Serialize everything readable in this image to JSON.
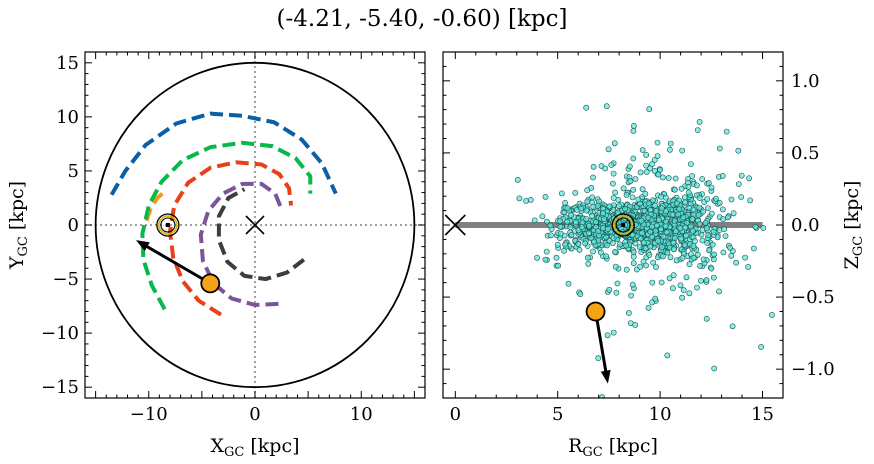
{
  "figure": {
    "title": "(-4.21, -5.40, -0.60) [kpc]"
  },
  "chart_data": [
    {
      "type": "line",
      "panel": "left",
      "title": "",
      "xlabel": "X",
      "xlabel_sub": "GC",
      "xlabel_unit": " [kpc]",
      "ylabel": "Y",
      "ylabel_sub": "GC",
      "ylabel_unit": " [kpc]",
      "xlim": [
        -16,
        16
      ],
      "ylim": [
        -16,
        16
      ],
      "xticks": [
        -10,
        0,
        10
      ],
      "yticks": [
        -15,
        -10,
        -5,
        0,
        5,
        10,
        15
      ],
      "tick_labels_x": [
        "−10",
        "0",
        "10"
      ],
      "tick_labels_y": [
        "−15",
        "−10",
        "−5",
        "0",
        "5",
        "10",
        "15"
      ],
      "outer_circle_radius": 15,
      "galactic_center": [
        0,
        0
      ],
      "sun": [
        -8.2,
        0
      ],
      "object": [
        -4.21,
        -5.4
      ],
      "object_velocity_arrow_tip": [
        -11.2,
        -1.4
      ],
      "spiral_arms": [
        {
          "color": "#0a5fa8",
          "points": [
            [
              -13.5,
              2.8
            ],
            [
              -12.2,
              5.0
            ],
            [
              -10.3,
              7.4
            ],
            [
              -7.4,
              9.4
            ],
            [
              -4.2,
              10.3
            ],
            [
              -1.2,
              10.1
            ],
            [
              1.8,
              9.5
            ],
            [
              4.4,
              7.9
            ],
            [
              6.3,
              5.7
            ],
            [
              7.6,
              2.9
            ]
          ]
        },
        {
          "color": "#f29a18",
          "points": [
            [
              -10.2,
              0.4
            ],
            [
              -9.8,
              1.6
            ],
            [
              -9.2,
              2.5
            ],
            [
              -8.6,
              3.0
            ]
          ]
        },
        {
          "color": "#08b84a",
          "points": [
            [
              -8.5,
              -7.8
            ],
            [
              -9.7,
              -5.6
            ],
            [
              -10.5,
              -3.2
            ],
            [
              -10.6,
              -0.8
            ],
            [
              -10.0,
              1.8
            ],
            [
              -8.8,
              4.0
            ],
            [
              -6.8,
              6.0
            ],
            [
              -4.2,
              7.2
            ],
            [
              -1.2,
              7.6
            ],
            [
              1.6,
              7.3
            ],
            [
              3.8,
              6.2
            ],
            [
              5.2,
              4.5
            ],
            [
              5.2,
              2.9
            ]
          ]
        },
        {
          "color": "#e8401a",
          "points": [
            [
              -3.2,
              -8.3
            ],
            [
              -5.3,
              -7.0
            ],
            [
              -6.8,
              -5.2
            ],
            [
              -7.7,
              -3.0
            ],
            [
              -8.0,
              -0.6
            ],
            [
              -7.6,
              1.8
            ],
            [
              -6.3,
              3.9
            ],
            [
              -4.2,
              5.3
            ],
            [
              -1.8,
              5.8
            ],
            [
              0.6,
              5.6
            ],
            [
              2.3,
              4.7
            ],
            [
              3.2,
              3.4
            ],
            [
              3.4,
              1.8
            ]
          ]
        },
        {
          "color": "#7b549a",
          "points": [
            [
              2.2,
              -7.3
            ],
            [
              0.0,
              -7.4
            ],
            [
              -2.2,
              -6.8
            ],
            [
              -3.9,
              -5.4
            ],
            [
              -4.9,
              -3.3
            ],
            [
              -5.1,
              -0.9
            ],
            [
              -4.4,
              1.3
            ],
            [
              -3.0,
              2.9
            ],
            [
              -1.2,
              3.8
            ],
            [
              0.6,
              3.8
            ],
            [
              1.9,
              2.9
            ],
            [
              2.4,
              1.7
            ]
          ]
        },
        {
          "color": "#3d3d3d",
          "points": [
            [
              4.6,
              -3.2
            ],
            [
              3.0,
              -4.4
            ],
            [
              1.0,
              -5.0
            ],
            [
              -1.0,
              -4.7
            ],
            [
              -2.6,
              -3.4
            ],
            [
              -3.4,
              -1.4
            ],
            [
              -3.4,
              0.8
            ],
            [
              -2.5,
              2.5
            ],
            [
              -1.0,
              3.3
            ]
          ]
        }
      ]
    },
    {
      "type": "scatter",
      "panel": "right",
      "title": "",
      "xlabel": "R",
      "xlabel_sub": "GC",
      "xlabel_unit": " [kpc]",
      "ylabel": "Z",
      "ylabel_sub": "GC",
      "ylabel_unit": " [kpc]",
      "xlim": [
        -0.6,
        16
      ],
      "ylim": [
        -1.2,
        1.2
      ],
      "xticks": [
        0,
        5,
        10,
        15
      ],
      "yticks": [
        1.0,
        0.5,
        0.0,
        -0.5,
        -1.0
      ],
      "tick_labels_x": [
        "0",
        "5",
        "10",
        "15"
      ],
      "tick_labels_y": [
        "1.0",
        "0.5",
        "0.0",
        "−0.5",
        "−1.0"
      ],
      "disk_line": [
        [
          0,
          0
        ],
        [
          15,
          0
        ]
      ],
      "galactic_center": [
        0,
        0
      ],
      "sun": [
        8.2,
        0
      ],
      "object": [
        6.85,
        -0.6
      ],
      "object_velocity_arrow_tip": [
        7.45,
        -1.1
      ],
      "stars": {
        "approx_count": 1500,
        "color": "#5ce8de",
        "center": [
          8.8,
          0.0
        ],
        "description": "cloud of stars concentrated near the disk plane between R=4 and R=13 kpc with sparse outliers up to |Z|~1.2 kpc"
      }
    }
  ],
  "colors": {
    "sun_marker": "#d4b400",
    "object_marker": "#f5a418",
    "disk_line": "#808080",
    "grid_dotted": "#808080"
  }
}
